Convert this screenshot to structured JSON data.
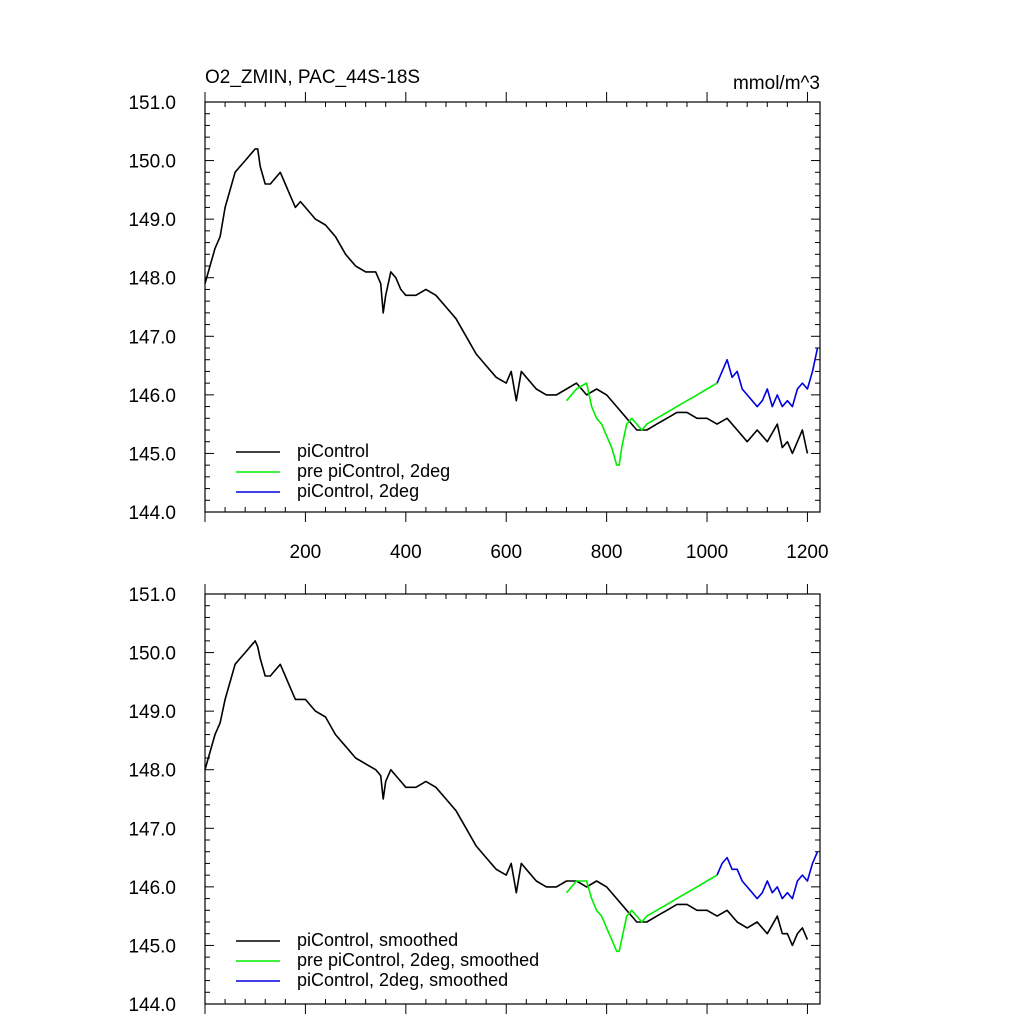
{
  "colors": {
    "piControl": "#000000",
    "pre_piControl_2deg": "#00ee00",
    "piControl_2deg": "#0000dd"
  },
  "chart_data": [
    {
      "type": "line",
      "title": "O2_ZMIN, PAC_44S-18S",
      "units": "mmol/m^3",
      "xlim": [
        0,
        1225
      ],
      "ylim": [
        144.0,
        151.0
      ],
      "x_ticks": [
        200,
        400,
        600,
        800,
        1000,
        1200
      ],
      "x_tick_labels": [
        "200",
        "400",
        "600",
        "800",
        "1000",
        "1200"
      ],
      "y_ticks": [
        144.0,
        145.0,
        146.0,
        147.0,
        148.0,
        149.0,
        150.0,
        151.0
      ],
      "y_tick_labels": [
        "144.0",
        "145.0",
        "146.0",
        "147.0",
        "148.0",
        "149.0",
        "150.0",
        "151.0"
      ],
      "legend_position": "bottom-left",
      "series": [
        {
          "name": "piControl",
          "color_key": "piControl",
          "x": [
            0,
            10,
            20,
            30,
            40,
            50,
            60,
            70,
            80,
            90,
            100,
            105,
            110,
            120,
            130,
            140,
            150,
            160,
            170,
            180,
            190,
            200,
            220,
            240,
            260,
            280,
            300,
            320,
            340,
            350,
            355,
            360,
            370,
            380,
            390,
            400,
            420,
            440,
            460,
            480,
            500,
            520,
            540,
            560,
            580,
            600,
            610,
            620,
            630,
            640,
            660,
            680,
            700,
            720,
            740,
            760,
            780,
            800,
            820,
            840,
            860,
            880,
            900,
            920,
            940,
            960,
            980,
            1000,
            1020,
            1040,
            1060,
            1080,
            1100,
            1120,
            1140,
            1150,
            1160,
            1170,
            1180,
            1190,
            1200
          ],
          "y": [
            147.9,
            148.2,
            148.5,
            148.7,
            149.2,
            149.5,
            149.8,
            149.9,
            150.0,
            150.1,
            150.2,
            150.2,
            149.9,
            149.6,
            149.6,
            149.7,
            149.8,
            149.6,
            149.4,
            149.2,
            149.3,
            149.2,
            149.0,
            148.9,
            148.7,
            148.4,
            148.2,
            148.1,
            148.1,
            147.9,
            147.4,
            147.7,
            148.1,
            148.0,
            147.8,
            147.7,
            147.7,
            147.8,
            147.7,
            147.5,
            147.3,
            147.0,
            146.7,
            146.5,
            146.3,
            146.2,
            146.4,
            145.9,
            146.4,
            146.3,
            146.1,
            146.0,
            146.0,
            146.1,
            146.2,
            146.0,
            146.1,
            146.0,
            145.8,
            145.6,
            145.4,
            145.4,
            145.5,
            145.6,
            145.7,
            145.7,
            145.6,
            145.6,
            145.5,
            145.6,
            145.4,
            145.2,
            145.4,
            145.2,
            145.5,
            145.1,
            145.2,
            145.0,
            145.2,
            145.4,
            145.0
          ]
        },
        {
          "name": "pre piControl, 2deg",
          "color_key": "pre_piControl_2deg",
          "x": [
            720,
            740,
            760,
            770,
            780,
            790,
            800,
            810,
            820,
            825,
            830,
            840,
            850,
            860,
            870,
            880,
            900,
            920,
            940,
            960,
            980,
            1000,
            1020
          ],
          "y": [
            145.9,
            146.1,
            146.2,
            145.8,
            145.6,
            145.5,
            145.3,
            145.1,
            144.8,
            144.8,
            145.1,
            145.5,
            145.6,
            145.5,
            145.4,
            145.5,
            145.6,
            145.7,
            145.8,
            145.9,
            146.0,
            146.1,
            146.2
          ]
        },
        {
          "name": "piControl, 2deg",
          "color_key": "piControl_2deg",
          "x": [
            1020,
            1030,
            1040,
            1050,
            1060,
            1070,
            1080,
            1090,
            1100,
            1110,
            1120,
            1130,
            1140,
            1150,
            1160,
            1170,
            1180,
            1190,
            1200,
            1210,
            1220
          ],
          "y": [
            146.2,
            146.4,
            146.6,
            146.3,
            146.4,
            146.1,
            146.0,
            145.9,
            145.8,
            145.9,
            146.1,
            145.8,
            146.0,
            145.8,
            145.9,
            145.8,
            146.1,
            146.2,
            146.1,
            146.4,
            146.8
          ]
        }
      ]
    },
    {
      "type": "line",
      "xlim": [
        0,
        1225
      ],
      "ylim": [
        144.0,
        151.0
      ],
      "y_ticks": [
        144.0,
        145.0,
        146.0,
        147.0,
        148.0,
        149.0,
        150.0,
        151.0
      ],
      "y_tick_labels": [
        "144.0",
        "145.0",
        "146.0",
        "147.0",
        "148.0",
        "149.0",
        "150.0",
        "151.0"
      ],
      "legend_position": "bottom-left",
      "series": [
        {
          "name": "piControl, smoothed",
          "color_key": "piControl",
          "x": [
            0,
            10,
            20,
            30,
            40,
            50,
            60,
            70,
            80,
            90,
            100,
            105,
            110,
            120,
            130,
            140,
            150,
            160,
            170,
            180,
            190,
            200,
            220,
            240,
            260,
            280,
            300,
            320,
            340,
            350,
            355,
            360,
            370,
            380,
            390,
            400,
            420,
            440,
            460,
            480,
            500,
            520,
            540,
            560,
            580,
            600,
            610,
            620,
            630,
            640,
            660,
            680,
            700,
            720,
            740,
            760,
            780,
            800,
            820,
            840,
            860,
            880,
            900,
            920,
            940,
            960,
            980,
            1000,
            1020,
            1040,
            1060,
            1080,
            1100,
            1120,
            1140,
            1150,
            1160,
            1170,
            1180,
            1190,
            1200
          ],
          "y": [
            148.0,
            148.3,
            148.6,
            148.8,
            149.2,
            149.5,
            149.8,
            149.9,
            150.0,
            150.1,
            150.2,
            150.1,
            149.9,
            149.6,
            149.6,
            149.7,
            149.8,
            149.6,
            149.4,
            149.2,
            149.2,
            149.2,
            149.0,
            148.9,
            148.6,
            148.4,
            148.2,
            148.1,
            148.0,
            147.9,
            147.5,
            147.8,
            148.0,
            147.9,
            147.8,
            147.7,
            147.7,
            147.8,
            147.7,
            147.5,
            147.3,
            147.0,
            146.7,
            146.5,
            146.3,
            146.2,
            146.4,
            145.9,
            146.4,
            146.3,
            146.1,
            146.0,
            146.0,
            146.1,
            146.1,
            146.0,
            146.1,
            146.0,
            145.8,
            145.6,
            145.4,
            145.4,
            145.5,
            145.6,
            145.7,
            145.7,
            145.6,
            145.6,
            145.5,
            145.6,
            145.4,
            145.3,
            145.4,
            145.2,
            145.5,
            145.2,
            145.2,
            145.0,
            145.2,
            145.3,
            145.1
          ]
        },
        {
          "name": "pre piControl, 2deg, smoothed",
          "color_key": "pre_piControl_2deg",
          "x": [
            720,
            740,
            760,
            770,
            780,
            790,
            800,
            810,
            820,
            825,
            830,
            840,
            850,
            860,
            870,
            880,
            900,
            920,
            940,
            960,
            980,
            1000,
            1020
          ],
          "y": [
            145.9,
            146.1,
            146.1,
            145.8,
            145.6,
            145.5,
            145.3,
            145.1,
            144.9,
            144.9,
            145.1,
            145.5,
            145.6,
            145.5,
            145.4,
            145.5,
            145.6,
            145.7,
            145.8,
            145.9,
            146.0,
            146.1,
            146.2
          ]
        },
        {
          "name": "piControl, 2deg, smoothed",
          "color_key": "piControl_2deg",
          "x": [
            1020,
            1030,
            1040,
            1050,
            1060,
            1070,
            1080,
            1090,
            1100,
            1110,
            1120,
            1130,
            1140,
            1150,
            1160,
            1170,
            1180,
            1190,
            1200,
            1210,
            1220
          ],
          "y": [
            146.2,
            146.4,
            146.5,
            146.3,
            146.3,
            146.1,
            146.0,
            145.9,
            145.8,
            145.9,
            146.1,
            145.9,
            146.0,
            145.8,
            145.9,
            145.8,
            146.1,
            146.2,
            146.1,
            146.4,
            146.6
          ]
        }
      ]
    }
  ]
}
